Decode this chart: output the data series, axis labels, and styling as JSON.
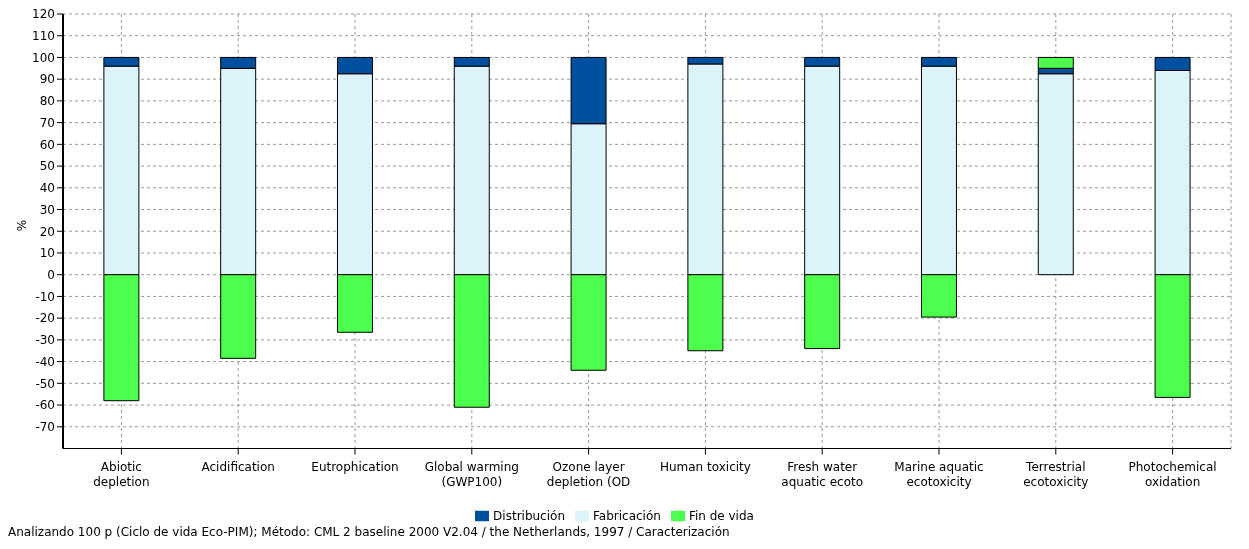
{
  "chart_data": {
    "type": "bar",
    "stacked": true,
    "ylabel": "%",
    "categories": [
      "Abiotic depletion",
      "Acidification",
      "Eutrophication",
      "Global warming (GWP100)",
      "Ozone layer depletion (OD",
      "Human toxicity",
      "Fresh water aquatic ecoto",
      "Marine aquatic ecotoxicity",
      "Terrestrial ecotoxicity",
      "Photochemical oxidation"
    ],
    "series": [
      {
        "name": "Fabricación",
        "color": "#dcf3fa",
        "values": [
          96,
          95,
          92.5,
          96,
          69.5,
          97,
          96,
          96,
          92.5,
          94
        ]
      },
      {
        "name": "Distribución",
        "color": "#0050a0",
        "values": [
          4,
          5,
          7.5,
          4,
          30.5,
          3,
          4,
          4,
          2.5,
          6
        ]
      },
      {
        "name": "Fin de vida",
        "color": "#4cff4c",
        "values": [
          -58,
          -38.5,
          -26.5,
          -61,
          -44,
          -35,
          -34,
          -19.5,
          5,
          -56.5
        ]
      }
    ],
    "ylim": [
      -80,
      120
    ],
    "yticks": [
      -70,
      -60,
      -50,
      -40,
      -30,
      -20,
      -10,
      0,
      10,
      20,
      30,
      40,
      50,
      60,
      70,
      80,
      90,
      100,
      110,
      120
    ],
    "grid": true,
    "legend": "bottom",
    "annotations": [
      "Analizando 100 p (Ciclo de vida Eco-PIM);  Método: CML 2 baseline 2000 V2.04 /  the Netherlands, 1997 / Caracterización"
    ]
  }
}
